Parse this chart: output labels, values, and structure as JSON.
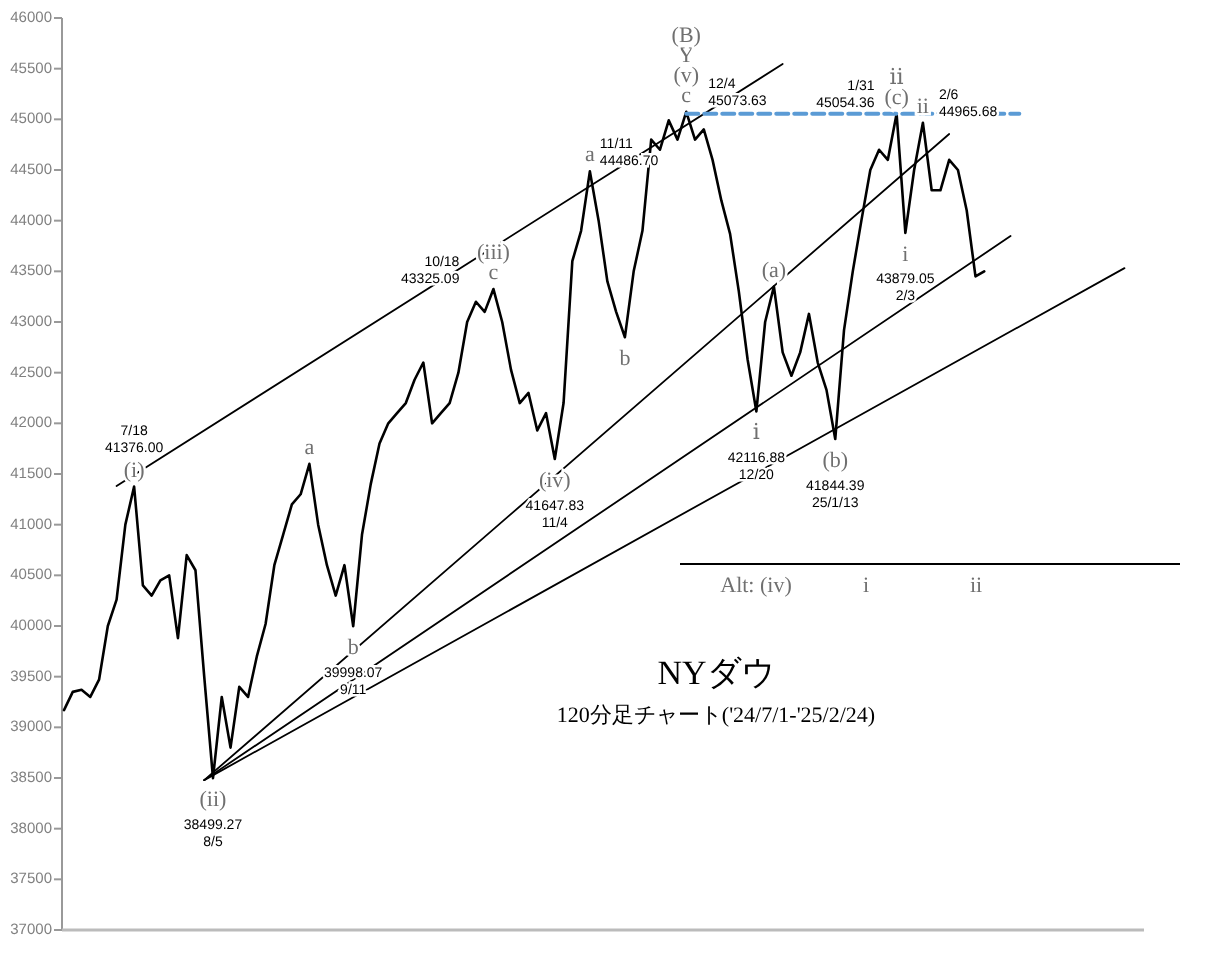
{
  "chart_data": {
    "type": "line",
    "title": "NYダウ",
    "subtitle": "120分足チャート('24/7/1-'25/2/24)",
    "categories": [
      null,
      null,
      null,
      null,
      null,
      null,
      null,
      null,
      null,
      null,
      null,
      null,
      null,
      null,
      null,
      null,
      null,
      null,
      null,
      null,
      null,
      null,
      null,
      null,
      null,
      null,
      null,
      null,
      null,
      null,
      null,
      null,
      null,
      null,
      null,
      null,
      null,
      null,
      null,
      null,
      null,
      null,
      null,
      null,
      null,
      null,
      null,
      null,
      null,
      null,
      null,
      null,
      null,
      null,
      null,
      null,
      null,
      null,
      null,
      null,
      null,
      null,
      null,
      null,
      null,
      null,
      null,
      null,
      null,
      null,
      null,
      null,
      null,
      null,
      null,
      null,
      null,
      null,
      null,
      null,
      null,
      null,
      null,
      null,
      null,
      null,
      null,
      null,
      null,
      null,
      null,
      null,
      null,
      null,
      null,
      null,
      null,
      null,
      null,
      null,
      null,
      null,
      null,
      null,
      null,
      null,
      null,
      null,
      null,
      null,
      null,
      null,
      null,
      null,
      null,
      null,
      null,
      null,
      null,
      null,
      null,
      null,
      null,
      null
    ],
    "ylim": [
      37000,
      46000
    ],
    "yticks": [
      37000,
      37500,
      38000,
      38500,
      39000,
      39500,
      40000,
      40500,
      41000,
      41500,
      42000,
      42500,
      43000,
      43500,
      44000,
      44500,
      45000,
      45500,
      46000
    ],
    "tick_labels": "y",
    "series": [
      {
        "color": "#000000",
        "values": [
          39170,
          39350,
          39370,
          39300,
          39470,
          40000,
          40260,
          41000,
          41376,
          40400,
          40300,
          40450,
          40500,
          39880,
          40700,
          40550,
          39500,
          38499,
          39300,
          38800,
          39400,
          39300,
          39700,
          40020,
          40600,
          40900,
          41200,
          41300,
          41600,
          41000,
          40600,
          40300,
          40600,
          39998,
          40900,
          41400,
          41800,
          42000,
          42100,
          42200,
          42430,
          42600,
          42000,
          42100,
          42200,
          42500,
          43000,
          43200,
          43100,
          43325,
          43000,
          42530,
          42200,
          42300,
          41930,
          42100,
          41648,
          42200,
          43600,
          43900,
          44487,
          44000,
          43400,
          43100,
          42850,
          43500,
          43900,
          44800,
          44700,
          44990,
          44800,
          45074,
          44800,
          44900,
          44600,
          44200,
          43870,
          43300,
          42630,
          42117,
          43000,
          43350,
          42700,
          42470,
          42700,
          43080,
          42600,
          42330,
          41845,
          42920,
          43500,
          44010,
          44500,
          44700,
          44600,
          45054,
          43879,
          44500,
          44966,
          44300,
          44300,
          44600,
          44500,
          44100,
          43450,
          43500,
          null,
          null,
          null,
          null,
          null,
          null,
          null,
          null,
          null,
          null,
          null,
          null,
          null,
          null,
          null,
          null,
          null,
          null
        ]
      },
      {
        "color": "#000000",
        "values": [
          null,
          null,
          null,
          null,
          null,
          null,
          41382,
          null,
          null,
          null,
          null,
          null,
          null,
          null,
          null,
          null,
          null,
          null,
          null,
          null,
          null,
          null,
          null,
          null,
          null,
          null,
          null,
          null,
          null,
          null,
          null,
          null,
          null,
          null,
          null,
          null,
          null,
          null,
          null,
          null,
          null,
          null,
          null,
          null,
          null,
          null,
          null,
          null,
          null,
          null,
          null,
          null,
          null,
          null,
          null,
          null,
          null,
          null,
          null,
          null,
          null,
          null,
          null,
          null,
          null,
          null,
          null,
          null,
          null,
          null,
          null,
          null,
          null,
          null,
          null,
          null,
          null,
          null,
          null,
          null,
          null,
          null,
          45546,
          null,
          null,
          null,
          null,
          null,
          null,
          null,
          null,
          null,
          null,
          null,
          null,
          null,
          null,
          null,
          null,
          null,
          null,
          null,
          null,
          null,
          null,
          null,
          null,
          null,
          null,
          null,
          null,
          null,
          null,
          null,
          null,
          null,
          null,
          null,
          null,
          null,
          null,
          null,
          null,
          null
        ]
      },
      {
        "color": "#000000",
        "values": [
          null,
          null,
          null,
          null,
          null,
          null,
          null,
          null,
          null,
          null,
          null,
          null,
          null,
          null,
          null,
          null,
          38479,
          null,
          null,
          null,
          null,
          null,
          null,
          null,
          null,
          null,
          null,
          null,
          null,
          null,
          null,
          null,
          null,
          null,
          null,
          null,
          null,
          null,
          null,
          null,
          null,
          null,
          null,
          null,
          null,
          null,
          null,
          null,
          null,
          null,
          null,
          null,
          null,
          null,
          null,
          null,
          null,
          null,
          null,
          null,
          null,
          null,
          null,
          null,
          null,
          null,
          null,
          null,
          null,
          null,
          null,
          null,
          null,
          null,
          null,
          null,
          null,
          null,
          null,
          null,
          null,
          null,
          null,
          null,
          null,
          null,
          null,
          null,
          null,
          null,
          null,
          null,
          null,
          null,
          null,
          null,
          null,
          null,
          null,
          null,
          null,
          44855,
          null,
          null,
          null,
          null,
          null,
          null,
          null,
          null,
          null,
          null,
          null,
          null,
          null,
          null,
          null,
          null,
          null,
          null,
          null,
          null,
          null,
          null
        ]
      },
      {
        "color": "#000000",
        "values": [
          null,
          null,
          null,
          null,
          null,
          null,
          null,
          null,
          null,
          null,
          null,
          null,
          null,
          null,
          null,
          null,
          38479,
          null,
          null,
          null,
          null,
          null,
          null,
          null,
          null,
          null,
          null,
          null,
          null,
          null,
          null,
          null,
          null,
          null,
          null,
          null,
          null,
          null,
          null,
          null,
          null,
          null,
          null,
          null,
          null,
          null,
          null,
          null,
          null,
          null,
          null,
          null,
          null,
          null,
          null,
          null,
          null,
          null,
          null,
          null,
          null,
          null,
          null,
          null,
          null,
          null,
          null,
          null,
          null,
          null,
          null,
          null,
          null,
          null,
          null,
          null,
          null,
          null,
          null,
          null,
          null,
          null,
          null,
          null,
          null,
          null,
          null,
          null,
          null,
          null,
          null,
          null,
          null,
          null,
          null,
          null,
          null,
          null,
          null,
          null,
          null,
          null,
          null,
          null,
          null,
          null,
          null,
          null,
          43848,
          null,
          null,
          null,
          null,
          null,
          null,
          null,
          null,
          null,
          null,
          null,
          null,
          null,
          null,
          null
        ]
      },
      {
        "color": "#000000",
        "values": [
          null,
          null,
          null,
          null,
          null,
          null,
          null,
          null,
          null,
          null,
          null,
          null,
          null,
          null,
          null,
          null,
          38479,
          null,
          null,
          null,
          null,
          null,
          null,
          null,
          null,
          null,
          null,
          null,
          null,
          null,
          null,
          null,
          null,
          null,
          null,
          null,
          null,
          null,
          null,
          null,
          null,
          null,
          null,
          null,
          null,
          null,
          null,
          null,
          null,
          null,
          null,
          null,
          null,
          null,
          null,
          null,
          null,
          null,
          null,
          null,
          null,
          null,
          null,
          null,
          null,
          null,
          null,
          null,
          null,
          null,
          null,
          null,
          null,
          null,
          null,
          null,
          null,
          null,
          null,
          null,
          null,
          null,
          null,
          null,
          null,
          null,
          null,
          null,
          null,
          null,
          null,
          null,
          null,
          null,
          null,
          null,
          null,
          null,
          null,
          null,
          null,
          null,
          null,
          null,
          null,
          null,
          null,
          null,
          null,
          null,
          null,
          null,
          null,
          null,
          null,
          null,
          null,
          null,
          null,
          null,
          null,
          43532,
          null,
          null
        ]
      },
      {
        "color": "#5b9bd5",
        "line_style": "dashed",
        "values": [
          null,
          null,
          null,
          null,
          null,
          null,
          null,
          null,
          null,
          null,
          null,
          null,
          null,
          null,
          null,
          null,
          null,
          null,
          null,
          null,
          null,
          null,
          null,
          null,
          null,
          null,
          null,
          null,
          null,
          null,
          null,
          null,
          null,
          null,
          null,
          null,
          null,
          null,
          null,
          null,
          null,
          null,
          null,
          null,
          null,
          null,
          null,
          null,
          null,
          null,
          null,
          null,
          null,
          null,
          null,
          null,
          null,
          null,
          null,
          null,
          null,
          null,
          null,
          null,
          null,
          null,
          null,
          null,
          null,
          null,
          null,
          45054,
          null,
          null,
          null,
          null,
          null,
          null,
          null,
          null,
          null,
          null,
          null,
          null,
          null,
          null,
          null,
          null,
          null,
          null,
          null,
          null,
          null,
          null,
          null,
          null,
          null,
          null,
          null,
          null,
          null,
          null,
          null,
          null,
          null,
          null,
          null,
          null,
          null,
          45054,
          null,
          null,
          null,
          null,
          null,
          null,
          null,
          null,
          null,
          null,
          null,
          null,
          null,
          null
        ]
      }
    ],
    "annotations": [
      {
        "text": "7/18\n41376.00",
        "y": 41376
      },
      {
        "text": "(i)",
        "y": 41376
      },
      {
        "text": "(ii)",
        "y": 38499
      },
      {
        "text": "38499.27\n8/5",
        "y": 38499
      },
      {
        "text": "a",
        "y": 41600
      },
      {
        "text": "b",
        "y": 39998
      },
      {
        "text": "39998.07\n9/11",
        "y": 39998
      },
      {
        "text": "10/18\n43325.09",
        "y": 43325
      },
      {
        "text": "c",
        "y": 43325
      },
      {
        "text": "(iii)",
        "y": 43325
      },
      {
        "text": "(iv)",
        "y": 41648
      },
      {
        "text": "41647.83\n11/4",
        "y": 41648
      },
      {
        "text": "11/11\n44486.70",
        "y": 44487
      },
      {
        "text": "a",
        "y": 44487
      },
      {
        "text": "b",
        "y": 42850
      },
      {
        "text": "c",
        "y": 45074
      },
      {
        "text": "(v)",
        "y": 45074
      },
      {
        "text": "Y",
        "y": 45074
      },
      {
        "text": "(B)",
        "y": 45074
      },
      {
        "text": "12/4\n45073.63",
        "y": 45074
      },
      {
        "text": "(a)",
        "y": 43350
      },
      {
        "text": "42116.88\n12/20",
        "y": 42117
      },
      {
        "text": "ⅰ",
        "y": 42117
      },
      {
        "text": "(b)",
        "y": 41845
      },
      {
        "text": "41844.39\n25/1/13",
        "y": 41845
      },
      {
        "text": "(c)",
        "y": 45054
      },
      {
        "text": "ⅱ",
        "y": 45054
      },
      {
        "text": "1/31\n45054.36",
        "y": 45054
      },
      {
        "text": "ii",
        "y": 44966
      },
      {
        "text": "2/6\n44965.68",
        "y": 44966
      },
      {
        "text": "i",
        "y": 43879
      },
      {
        "text": "43879.05\n2/3",
        "y": 43879
      },
      "Alt: (iv)",
      "i",
      "ii"
    ]
  }
}
